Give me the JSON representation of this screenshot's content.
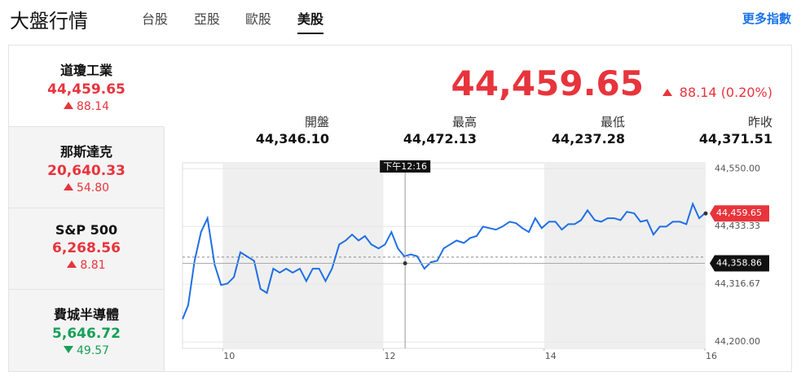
{
  "header": {
    "title": "大盤行情",
    "tabs": [
      "台股",
      "亞股",
      "歐股",
      "美股"
    ],
    "more_link": "更多指數"
  },
  "indices": [
    {
      "name": "道瓊工業",
      "value": "44,459.65",
      "change": "88.14",
      "direction": "up"
    },
    {
      "name": "那斯達克",
      "value": "20,640.33",
      "change": "54.80",
      "direction": "up"
    },
    {
      "name": "S&P 500",
      "value": "6,268.56",
      "change": "8.81",
      "direction": "up"
    },
    {
      "name": "費城半導體",
      "value": "5,646.72",
      "change": "49.57",
      "direction": "down"
    }
  ],
  "quote": {
    "price": "44,459.65",
    "change": "88.14",
    "change_pct": "(0.20%)",
    "direction": "up",
    "stats": [
      {
        "label": "開盤",
        "value": "44,346.10"
      },
      {
        "label": "最高",
        "value": "44,472.13"
      },
      {
        "label": "最低",
        "value": "44,237.28"
      },
      {
        "label": "昨收",
        "value": "44,371.51"
      }
    ]
  },
  "chart_data": {
    "type": "line",
    "x": [
      9.5,
      9.57,
      9.65,
      9.73,
      9.81,
      9.9,
      9.98,
      10.06,
      10.14,
      10.22,
      10.3,
      10.39,
      10.47,
      10.55,
      10.63,
      10.71,
      10.79,
      10.87,
      10.96,
      11.04,
      11.12,
      11.2,
      11.28,
      11.36,
      11.45,
      11.53,
      11.61,
      11.69,
      11.77,
      11.85,
      11.94,
      12.02,
      12.1,
      12.18,
      12.26,
      12.34,
      12.42,
      12.51,
      12.59,
      12.67,
      12.75,
      12.83,
      12.91,
      13.0,
      13.08,
      13.16,
      13.24,
      13.32,
      13.4,
      13.48,
      13.57,
      13.65,
      13.73,
      13.81,
      13.89,
      13.97,
      14.06,
      14.14,
      14.22,
      14.3,
      14.38,
      14.46,
      14.54,
      14.63,
      14.71,
      14.79,
      14.87,
      14.95,
      15.03,
      15.12,
      15.2,
      15.28,
      15.36,
      15.44,
      15.52,
      15.6,
      15.69,
      15.77,
      15.85,
      15.93,
      16.0
    ],
    "series": [
      {
        "color": "#1f6fe5",
        "values": [
          44246,
          44274,
          44364,
          44422,
          44450,
          44356,
          44315,
          44318,
          44331,
          44381,
          44373,
          44364,
          44307,
          44299,
          44348,
          44340,
          44348,
          44340,
          44348,
          44323,
          44348,
          44348,
          44323,
          44348,
          44397,
          44405,
          44417,
          44405,
          44414,
          44397,
          44389,
          44397,
          44422,
          44389,
          44373,
          44377,
          44373,
          44348,
          44361,
          44364,
          44389,
          44397,
          44405,
          44400,
          44410,
          44414,
          44433,
          44430,
          44427,
          44433,
          44443,
          44440,
          44430,
          44422,
          44450,
          44430,
          44443,
          44443,
          44427,
          44438,
          44438,
          44446,
          44466,
          44446,
          44443,
          44450,
          44450,
          44446,
          44463,
          44460,
          44443,
          44446,
          44417,
          44433,
          44433,
          44443,
          44443,
          44438,
          44479,
          44450,
          44460
        ]
      }
    ],
    "xlim": [
      9.5,
      16
    ],
    "ylim": [
      44187,
      44562
    ],
    "xticks": [
      10,
      12,
      14,
      16
    ],
    "yticks": [
      {
        "value": 44550,
        "label": "44,550.00"
      },
      {
        "value": 44433.33,
        "label": "44,433.33"
      },
      {
        "value": 44316.67,
        "label": "44,316.67"
      },
      {
        "value": 44200,
        "label": "44,200.00"
      }
    ],
    "reference_line": 44371.51,
    "last": {
      "value": 44459.65,
      "label": "44,459.65"
    },
    "crosshair": {
      "x": {
        "value": 12.27,
        "label": "下午12:16"
      },
      "y": {
        "value": 44358.86,
        "label": "44,358.86"
      }
    }
  }
}
